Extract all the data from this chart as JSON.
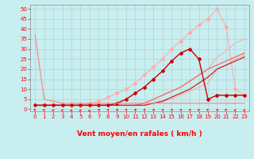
{
  "background_color": "#c8eef0",
  "grid_color": "#aacccc",
  "xlim": [
    -0.5,
    23.5
  ],
  "ylim": [
    -1,
    52
  ],
  "xticks": [
    0,
    1,
    2,
    3,
    4,
    5,
    6,
    7,
    8,
    9,
    10,
    11,
    12,
    13,
    14,
    15,
    16,
    17,
    18,
    19,
    20,
    21,
    22,
    23
  ],
  "yticks": [
    0,
    5,
    10,
    15,
    20,
    25,
    30,
    35,
    40,
    45,
    50
  ],
  "xlabel": "Vent moyen/en rafales ( km/h )",
  "series": [
    {
      "x": [
        0,
        1,
        2,
        3,
        4,
        5,
        6,
        7,
        8,
        9,
        10,
        11,
        12,
        13,
        14,
        15,
        16,
        17,
        18,
        19,
        20,
        21,
        22,
        23
      ],
      "y": [
        2,
        2,
        2,
        2,
        2,
        2,
        2,
        2,
        2,
        2,
        2,
        2,
        2,
        3,
        4,
        5,
        7,
        9,
        11,
        13,
        20,
        22,
        25,
        27
      ],
      "color": "#ffaaaa",
      "lw": 0.8,
      "marker": null
    },
    {
      "x": [
        0,
        1,
        2,
        3,
        4,
        5,
        6,
        7,
        8,
        9,
        10,
        11,
        12,
        13,
        14,
        15,
        16,
        17,
        18,
        19,
        20,
        21,
        22,
        23
      ],
      "y": [
        2,
        2,
        2,
        2,
        2,
        2,
        2,
        2,
        2,
        2,
        2,
        2,
        3,
        5,
        7,
        9,
        11,
        14,
        17,
        20,
        26,
        29,
        33,
        35
      ],
      "color": "#ffaaaa",
      "lw": 0.8,
      "marker": null
    },
    {
      "x": [
        0,
        1,
        2,
        3,
        4,
        5,
        6,
        7,
        8,
        9,
        10,
        11,
        12,
        13,
        14,
        15,
        16,
        17,
        18,
        19,
        20,
        21,
        22,
        23
      ],
      "y": [
        2,
        2,
        2,
        2,
        2,
        2,
        3,
        4,
        6,
        8,
        10,
        13,
        17,
        21,
        25,
        30,
        34,
        38,
        42,
        45,
        50,
        41,
        10,
        7
      ],
      "color": "#ffaaaa",
      "lw": 0.8,
      "marker": "D",
      "ms": 2
    },
    {
      "x": [
        0,
        1,
        2,
        3,
        4,
        5,
        6,
        7,
        8,
        9,
        10,
        11,
        12,
        13,
        14,
        15,
        16,
        17,
        18,
        19,
        20,
        21,
        22,
        23
      ],
      "y": [
        2,
        2,
        2,
        2,
        2,
        2,
        2,
        2,
        2,
        2,
        2,
        2,
        3,
        5,
        7,
        9,
        11,
        14,
        17,
        20,
        22,
        24,
        26,
        28
      ],
      "color": "#ff6666",
      "lw": 0.9,
      "marker": null
    },
    {
      "x": [
        0,
        1,
        2,
        3,
        4,
        5,
        6,
        7,
        8,
        9,
        10,
        11,
        12,
        13,
        14,
        15,
        16,
        17,
        18,
        19,
        20,
        21,
        22,
        23
      ],
      "y": [
        2,
        2,
        2,
        2,
        2,
        2,
        2,
        2,
        2,
        2,
        2,
        2,
        2,
        3,
        4,
        6,
        8,
        10,
        13,
        16,
        20,
        22,
        24,
        26
      ],
      "color": "#cc2222",
      "lw": 0.9,
      "marker": null
    },
    {
      "x": [
        0,
        1,
        2,
        3,
        4,
        5,
        6,
        7,
        8,
        9,
        10,
        11,
        12,
        13,
        14,
        15,
        16,
        17,
        18,
        19,
        20,
        21,
        22,
        23
      ],
      "y": [
        2,
        2,
        2,
        2,
        2,
        2,
        2,
        2,
        2,
        3,
        5,
        8,
        11,
        15,
        19,
        24,
        28,
        30,
        25,
        5,
        7,
        7,
        7,
        7
      ],
      "color": "#cc0000",
      "lw": 1.0,
      "marker": "D",
      "ms": 2
    },
    {
      "x": [
        0,
        1,
        2,
        3,
        4,
        5,
        6,
        7,
        8,
        9,
        10,
        11,
        12,
        13,
        14,
        15,
        16,
        17,
        18,
        19,
        20,
        21,
        22,
        23
      ],
      "y": [
        37,
        5,
        4,
        3,
        3,
        3,
        3,
        3,
        3,
        3,
        3,
        3,
        3,
        3,
        3,
        3,
        3,
        3,
        3,
        3,
        3,
        3,
        3,
        3
      ],
      "color": "#ff8888",
      "lw": 0.9,
      "marker": null
    }
  ],
  "tick_fontsize": 5,
  "xlabel_fontsize": 6.5,
  "arrow_angles_deg": [
    315,
    300,
    285,
    270,
    255,
    240,
    225,
    45,
    45,
    45,
    45,
    45,
    45,
    45,
    45,
    45,
    45,
    45,
    315,
    315,
    45,
    315,
    270,
    270
  ]
}
